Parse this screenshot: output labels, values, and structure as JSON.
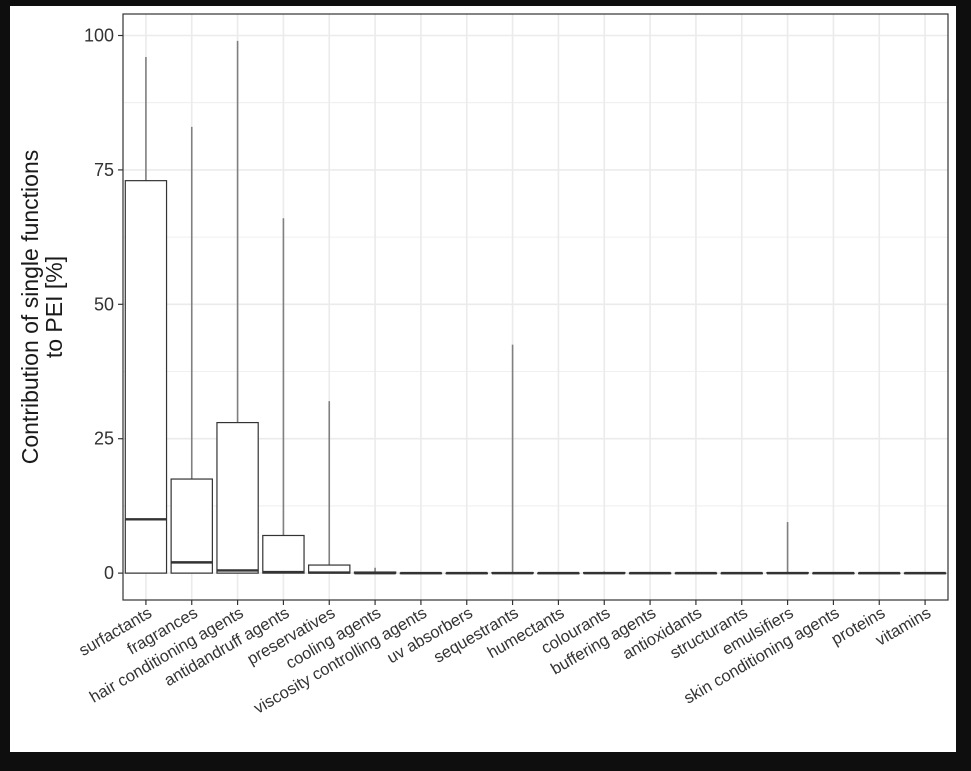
{
  "chart_data": {
    "type": "box",
    "title": "",
    "ylabel": [
      "Contribution of single functions",
      "to PEI [%]"
    ],
    "xlabel": "",
    "ylim": [
      -5,
      104
    ],
    "yticks": [
      0,
      25,
      50,
      75,
      100
    ],
    "grid": true,
    "categories": [
      "surfactants",
      "fragrances",
      "hair conditioning agents",
      "antidandruff agents",
      "preservatives",
      "cooling agents",
      "viscosity controlling agents",
      "uv absorbers",
      "sequestrants",
      "humectants",
      "colourants",
      "buffering agents",
      "antioxidants",
      "structurants",
      "emulsifiers",
      "skin conditioning agents",
      "proteins",
      "vitamins"
    ],
    "boxes": [
      {
        "min": 0,
        "q1": 0,
        "median": 10,
        "q3": 73,
        "max": 96
      },
      {
        "min": 0,
        "q1": 0,
        "median": 2,
        "q3": 17.5,
        "max": 83
      },
      {
        "min": 0,
        "q1": 0,
        "median": 0.5,
        "q3": 28,
        "max": 99
      },
      {
        "min": 0,
        "q1": 0,
        "median": 0.2,
        "q3": 7,
        "max": 66
      },
      {
        "min": 0,
        "q1": 0,
        "median": 0.1,
        "q3": 1.5,
        "max": 32
      },
      {
        "min": 0,
        "q1": 0,
        "median": 0,
        "q3": 0.2,
        "max": 1
      },
      {
        "min": 0,
        "q1": 0,
        "median": 0,
        "q3": 0,
        "max": 0
      },
      {
        "min": 0,
        "q1": 0,
        "median": 0,
        "q3": 0,
        "max": 0
      },
      {
        "min": 0,
        "q1": 0,
        "median": 0,
        "q3": 0.1,
        "max": 42.5
      },
      {
        "min": 0,
        "q1": 0,
        "median": 0,
        "q3": 0,
        "max": 0
      },
      {
        "min": 0,
        "q1": 0,
        "median": 0,
        "q3": 0.1,
        "max": 0.3
      },
      {
        "min": 0,
        "q1": 0,
        "median": 0,
        "q3": 0,
        "max": 0
      },
      {
        "min": 0,
        "q1": 0,
        "median": 0,
        "q3": 0,
        "max": 0
      },
      {
        "min": 0,
        "q1": 0,
        "median": 0,
        "q3": 0,
        "max": 0
      },
      {
        "min": 0,
        "q1": 0,
        "median": 0,
        "q3": 0.1,
        "max": 9.5
      },
      {
        "min": 0,
        "q1": 0,
        "median": 0,
        "q3": 0,
        "max": 0
      },
      {
        "min": 0,
        "q1": 0,
        "median": 0,
        "q3": 0,
        "max": 0
      },
      {
        "min": 0,
        "q1": 0,
        "median": 0,
        "q3": 0,
        "max": 0
      }
    ],
    "colors": {
      "box_fill": "#ffffff",
      "box_stroke": "#333333",
      "whisker": "#808080",
      "grid": "#ebebeb",
      "panel_border": "#333333"
    }
  }
}
